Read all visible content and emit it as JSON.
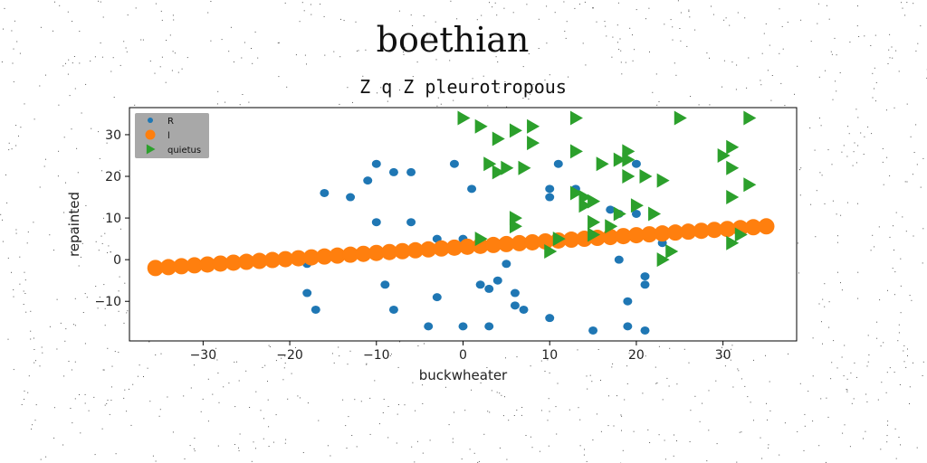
{
  "title": "boethian",
  "subtitle": "Z q Z pleurotropous",
  "chart_data": {
    "type": "scatter",
    "xlabel": "buckwheater",
    "ylabel": "repainted",
    "xlim": [
      -38.5,
      38.5
    ],
    "ylim": [
      -19.5,
      36.5
    ],
    "xticks": [
      -30,
      -20,
      -10,
      0,
      10,
      20,
      30
    ],
    "yticks": [
      -10,
      0,
      10,
      20,
      30
    ],
    "xtick_labels": [
      "−30",
      "−20",
      "−10",
      "0",
      "10",
      "20",
      "30"
    ],
    "ytick_labels": [
      "−10",
      "0",
      "10",
      "20",
      "30"
    ],
    "grid": false,
    "legend_position": "upper-left",
    "series": [
      {
        "name": "R",
        "marker": "circle-small",
        "color": "#1f77b4",
        "points": [
          [
            -18,
            -1
          ],
          [
            -18,
            -8
          ],
          [
            -17,
            -12
          ],
          [
            -16,
            16
          ],
          [
            -13,
            15
          ],
          [
            -11,
            19
          ],
          [
            -10,
            9
          ],
          [
            -10,
            23
          ],
          [
            -9,
            -6
          ],
          [
            -8,
            -12
          ],
          [
            -8,
            21
          ],
          [
            -6,
            9
          ],
          [
            -6,
            21
          ],
          [
            -4,
            -16
          ],
          [
            -3,
            -9
          ],
          [
            -3,
            5
          ],
          [
            -1,
            23
          ],
          [
            0,
            -16
          ],
          [
            0,
            5
          ],
          [
            1,
            17
          ],
          [
            2,
            -6
          ],
          [
            3,
            -7
          ],
          [
            3,
            -16
          ],
          [
            4,
            -5
          ],
          [
            5,
            -1
          ],
          [
            6,
            -8
          ],
          [
            6,
            -11
          ],
          [
            7,
            -12
          ],
          [
            10,
            -14
          ],
          [
            10,
            15
          ],
          [
            10,
            17
          ],
          [
            11,
            23
          ],
          [
            13,
            17
          ],
          [
            15,
            -17
          ],
          [
            17,
            12
          ],
          [
            18,
            0
          ],
          [
            18,
            11
          ],
          [
            19,
            -10
          ],
          [
            19,
            -16
          ],
          [
            20,
            11
          ],
          [
            20,
            23
          ],
          [
            21,
            -4
          ],
          [
            21,
            -6
          ],
          [
            21,
            -17
          ],
          [
            23,
            4
          ]
        ]
      },
      {
        "name": "l",
        "marker": "circle-large",
        "color": "#ff7f0e",
        "line_from": [
          -35.5,
          -2
        ],
        "line_to": [
          35,
          8
        ],
        "count": 48
      },
      {
        "name": "quietus",
        "marker": "triangle-right",
        "color": "#2ca02c",
        "points": [
          [
            0,
            34
          ],
          [
            2,
            32
          ],
          [
            2,
            5
          ],
          [
            3,
            23
          ],
          [
            4,
            29
          ],
          [
            4,
            21
          ],
          [
            5,
            22
          ],
          [
            6,
            31
          ],
          [
            6,
            8
          ],
          [
            6,
            10
          ],
          [
            7,
            22
          ],
          [
            8,
            32
          ],
          [
            8,
            28
          ],
          [
            10,
            2
          ],
          [
            11,
            5
          ],
          [
            13,
            34
          ],
          [
            13,
            26
          ],
          [
            13,
            16
          ],
          [
            14,
            13
          ],
          [
            14,
            15
          ],
          [
            15,
            9
          ],
          [
            15,
            14
          ],
          [
            15,
            6
          ],
          [
            16,
            23
          ],
          [
            17,
            8
          ],
          [
            18,
            11
          ],
          [
            18,
            24
          ],
          [
            19,
            24
          ],
          [
            19,
            20
          ],
          [
            19,
            26
          ],
          [
            20,
            13
          ],
          [
            21,
            20
          ],
          [
            22,
            11
          ],
          [
            23,
            19
          ],
          [
            23,
            0
          ],
          [
            24,
            2
          ],
          [
            25,
            34
          ],
          [
            30,
            25
          ],
          [
            31,
            27
          ],
          [
            31,
            22
          ],
          [
            31,
            15
          ],
          [
            31,
            4
          ],
          [
            32,
            6
          ],
          [
            33,
            18
          ],
          [
            33,
            34
          ]
        ]
      }
    ]
  }
}
